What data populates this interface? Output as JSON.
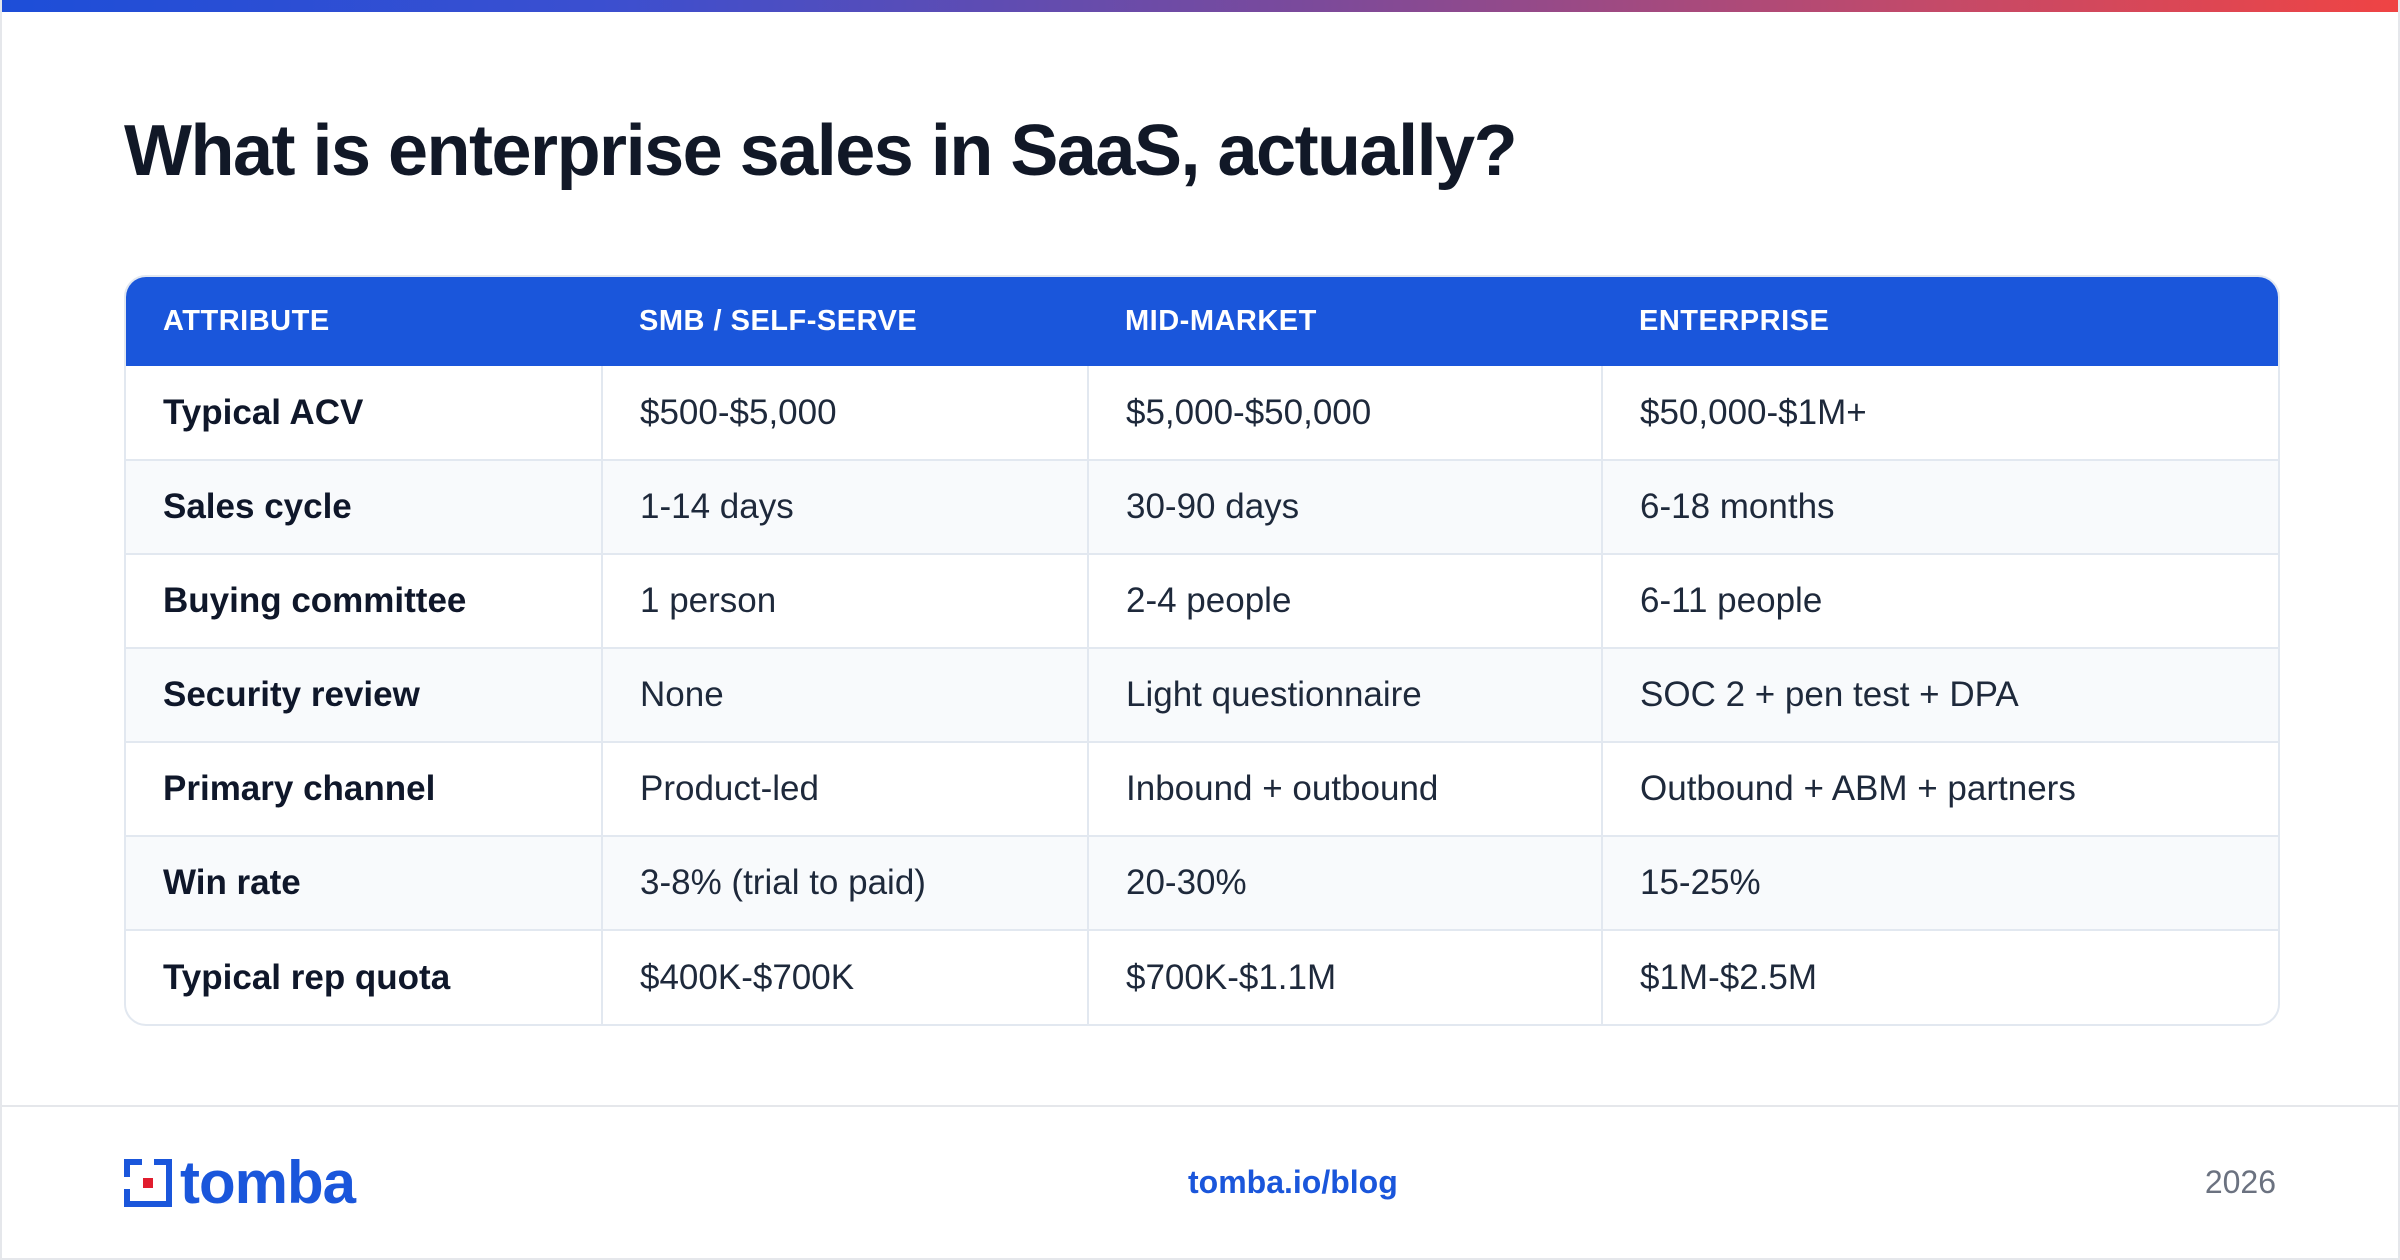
{
  "title": "What is enterprise sales in SaaS, actually?",
  "table": {
    "headers": [
      "ATTRIBUTE",
      "SMB / SELF-SERVE",
      "MID-MARKET",
      "ENTERPRISE"
    ],
    "rows": [
      [
        "Typical ACV",
        "$500-$5,000",
        "$5,000-$50,000",
        "$50,000-$1M+"
      ],
      [
        "Sales cycle",
        "1-14 days",
        "30-90 days",
        "6-18 months"
      ],
      [
        "Buying committee",
        "1 person",
        "2-4 people",
        "6-11 people"
      ],
      [
        "Security review",
        "None",
        "Light questionnaire",
        "SOC 2 + pen test + DPA"
      ],
      [
        "Primary channel",
        "Product-led",
        "Inbound + outbound",
        "Outbound + ABM + partners"
      ],
      [
        "Win rate",
        "3-8% (trial to paid)",
        "20-30%",
        "15-25%"
      ],
      [
        "Typical rep quota",
        "$400K-$700K",
        "$700K-$1.1M",
        "$1M-$2.5M"
      ]
    ]
  },
  "footer": {
    "logo_text": "tomba",
    "link": "tomba.io/blog",
    "year": "2026"
  },
  "colors": {
    "accent": "#1a56db",
    "header_bg": "#1a56db",
    "alt_row_bg": "#f8fafc",
    "logo_red": "#e11d2e"
  },
  "icons": {
    "logo_mark": "tomba-logo-icon"
  }
}
